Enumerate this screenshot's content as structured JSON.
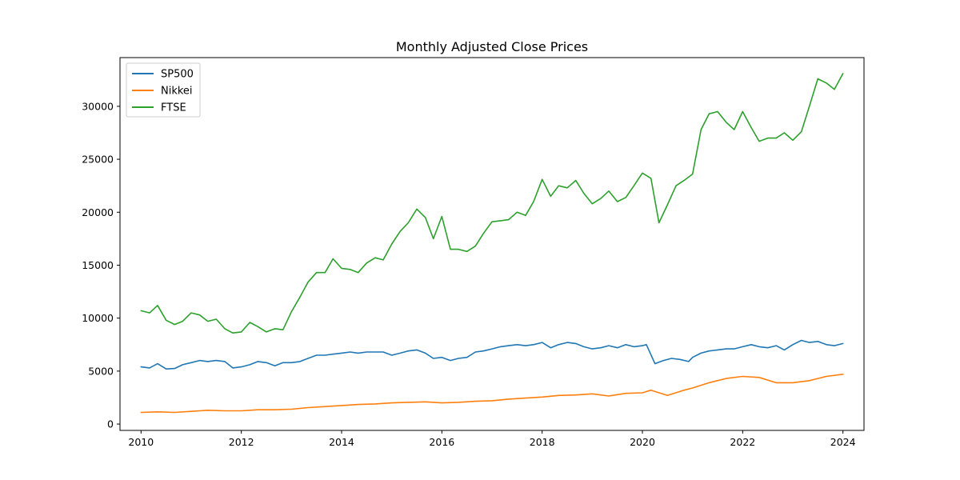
{
  "chart_data": {
    "type": "line",
    "title": "Monthly Adjusted Close Prices",
    "xlabel": "",
    "ylabel": "",
    "x_ticks": [
      "2010",
      "2012",
      "2014",
      "2016",
      "2018",
      "2020",
      "2022",
      "2024"
    ],
    "y_ticks": [
      "0",
      "5000",
      "10000",
      "15000",
      "20000",
      "25000",
      "30000"
    ],
    "xlim": [
      2009.58,
      2024.42
    ],
    "ylim": [
      -600,
      34600
    ],
    "grid": false,
    "legend_position": "top-left",
    "series": [
      {
        "name": "SP500",
        "color": "#1f77b4",
        "x": [
          2010.0,
          2010.17,
          2010.33,
          2010.5,
          2010.67,
          2010.83,
          2011.0,
          2011.17,
          2011.33,
          2011.5,
          2011.67,
          2011.83,
          2012.0,
          2012.17,
          2012.33,
          2012.5,
          2012.67,
          2012.83,
          2013.0,
          2013.17,
          2013.33,
          2013.5,
          2013.67,
          2013.83,
          2014.0,
          2014.17,
          2014.33,
          2014.5,
          2014.67,
          2014.83,
          2015.0,
          2015.17,
          2015.33,
          2015.5,
          2015.67,
          2015.83,
          2016.0,
          2016.17,
          2016.33,
          2016.5,
          2016.67,
          2016.83,
          2017.0,
          2017.17,
          2017.33,
          2017.5,
          2017.67,
          2017.83,
          2018.0,
          2018.17,
          2018.33,
          2018.5,
          2018.67,
          2018.83,
          2019.0,
          2019.17,
          2019.33,
          2019.5,
          2019.67,
          2019.83,
          2020.0,
          2020.08,
          2020.25,
          2020.42,
          2020.58,
          2020.75,
          2020.92,
          2021.0,
          2021.17,
          2021.33,
          2021.5,
          2021.67,
          2021.83,
          2022.0,
          2022.17,
          2022.33,
          2022.5,
          2022.67,
          2022.83,
          2023.0,
          2023.17,
          2023.33,
          2023.5,
          2023.67,
          2023.83,
          2024.0
        ],
        "values": [
          5400,
          5300,
          5700,
          5200,
          5250,
          5600,
          5800,
          6000,
          5900,
          6000,
          5900,
          5300,
          5400,
          5600,
          5900,
          5800,
          5500,
          5800,
          5800,
          5900,
          6200,
          6500,
          6500,
          6600,
          6700,
          6800,
          6700,
          6800,
          6800,
          6800,
          6500,
          6700,
          6900,
          7000,
          6700,
          6200,
          6300,
          6000,
          6200,
          6300,
          6800,
          6900,
          7100,
          7300,
          7400,
          7500,
          7400,
          7500,
          7700,
          7200,
          7500,
          7700,
          7600,
          7300,
          7100,
          7200,
          7400,
          7200,
          7500,
          7300,
          7400,
          7500,
          5700,
          6000,
          6200,
          6100,
          5900,
          6300,
          6700,
          6900,
          7000,
          7100,
          7100,
          7300,
          7500,
          7300,
          7200,
          7400,
          7000,
          7500,
          7900,
          7700,
          7800,
          7500,
          7400,
          7600
        ],
        "step": 1
      },
      {
        "name": "Nikkei",
        "color": "#ff7f0e",
        "x": [
          2010.0,
          2010.33,
          2010.67,
          2011.0,
          2011.33,
          2011.67,
          2012.0,
          2012.33,
          2012.67,
          2013.0,
          2013.33,
          2013.67,
          2014.0,
          2014.33,
          2014.67,
          2015.0,
          2015.33,
          2015.67,
          2016.0,
          2016.33,
          2016.67,
          2017.0,
          2017.33,
          2017.67,
          2018.0,
          2018.33,
          2018.67,
          2019.0,
          2019.33,
          2019.67,
          2020.0,
          2020.17,
          2020.5,
          2020.83,
          2021.0,
          2021.33,
          2021.67,
          2022.0,
          2022.33,
          2022.67,
          2023.0,
          2023.33,
          2023.67,
          2024.0
        ],
        "values": [
          1100,
          1150,
          1100,
          1200,
          1300,
          1250,
          1250,
          1350,
          1350,
          1400,
          1550,
          1650,
          1750,
          1850,
          1900,
          2000,
          2050,
          2100,
          2000,
          2050,
          2150,
          2200,
          2350,
          2450,
          2550,
          2700,
          2750,
          2850,
          2650,
          2900,
          2950,
          3200,
          2700,
          3200,
          3400,
          3900,
          4300,
          4500,
          4400,
          3900,
          3900,
          4100,
          4500,
          4700
        ],
        "step": 1
      },
      {
        "name": "FTSE",
        "color": "#2ca02c",
        "x": [
          2010.0,
          2010.17,
          2010.33,
          2010.5,
          2010.67,
          2010.83,
          2011.0,
          2011.17,
          2011.33,
          2011.5,
          2011.67,
          2011.83,
          2012.0,
          2012.17,
          2012.33,
          2012.5,
          2012.67,
          2012.83,
          2013.0,
          2013.17,
          2013.33,
          2013.5,
          2013.67,
          2013.83,
          2014.0,
          2014.17,
          2014.33,
          2014.5,
          2014.67,
          2014.83,
          2015.0,
          2015.17,
          2015.33,
          2015.5,
          2015.67,
          2015.83,
          2016.0,
          2016.17,
          2016.33,
          2016.5,
          2016.67,
          2016.83,
          2017.0,
          2017.17,
          2017.33,
          2017.5,
          2017.67,
          2017.83,
          2018.0,
          2018.17,
          2018.33,
          2018.5,
          2018.67,
          2018.83,
          2019.0,
          2019.17,
          2019.33,
          2019.5,
          2019.67,
          2019.83,
          2020.0,
          2020.17,
          2020.33,
          2020.5,
          2020.67,
          2020.83,
          2021.0,
          2021.17,
          2021.33,
          2021.5,
          2021.67,
          2021.83,
          2022.0,
          2022.17,
          2022.33,
          2022.5,
          2022.67,
          2022.83,
          2023.0,
          2023.17,
          2023.33,
          2023.5,
          2023.67,
          2023.83,
          2024.0
        ],
        "values": [
          10700,
          10500,
          11200,
          9800,
          9400,
          9700,
          10500,
          10300,
          9700,
          9900,
          9000,
          8600,
          8700,
          9600,
          9200,
          8700,
          9000,
          8900,
          10600,
          12000,
          13400,
          14300,
          14300,
          15600,
          14700,
          14600,
          14300,
          15200,
          15700,
          15500,
          17000,
          18200,
          19000,
          20300,
          19500,
          17500,
          19600,
          16500,
          16500,
          16300,
          16800,
          18000,
          19100,
          19200,
          19300,
          20000,
          19700,
          21000,
          23100,
          21500,
          22500,
          22300,
          23000,
          21800,
          20800,
          21300,
          22000,
          21000,
          21400,
          22500,
          23700,
          23200,
          19000,
          20700,
          22500,
          23000,
          23600,
          27800,
          29300,
          29500,
          28500,
          27800,
          29500,
          28000,
          26700,
          27000,
          27000,
          27500,
          26800,
          27600,
          30000,
          32600,
          32200,
          31600,
          33100
        ],
        "step": 1
      }
    ]
  }
}
